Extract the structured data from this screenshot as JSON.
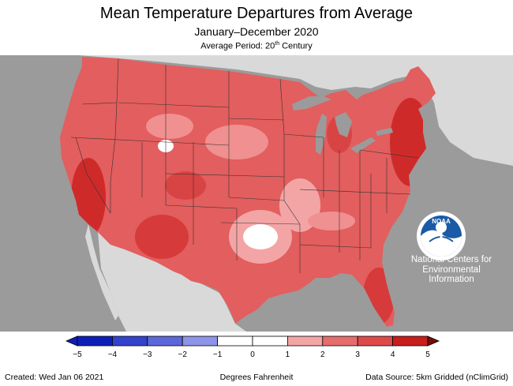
{
  "header": {
    "title": "Mean Temperature Departures from Average",
    "subtitle": "January–December 2020",
    "period_prefix": "Average Period: 20",
    "period_sup": "th",
    "period_suffix": " Century"
  },
  "logo": {
    "icon": "noaa-logo-icon",
    "text": "NOAA",
    "ncei_line1": "National Centers for",
    "ncei_line2": "Environmental",
    "ncei_line3": "Information"
  },
  "legend": {
    "ticks": [
      "−5",
      "−4",
      "−3",
      "−2",
      "−1",
      "0",
      "1",
      "2",
      "3",
      "4",
      "5"
    ],
    "colors": [
      "#0e1fb8",
      "#3343cc",
      "#5c68d8",
      "#8e95e6",
      "#ffffff",
      "#ffffff",
      "#f3a5a5",
      "#e66d6d",
      "#de4a4a",
      "#c81e1e"
    ]
  },
  "footer": {
    "created": "Created: Wed Jan 06 2021",
    "units": "Degrees Fahrenheit",
    "source": "Data Source: 5km Gridded (nClimGrid)"
  },
  "colors": {
    "ocean": "#9b9b9b",
    "land_outside": "#d9d9d9",
    "lakes": "#9b9b9b",
    "dominant_anomaly": "#e35e5e",
    "strong_anomaly": "#cf2a2a",
    "weak_anomaly": "#f3a5a5"
  }
}
